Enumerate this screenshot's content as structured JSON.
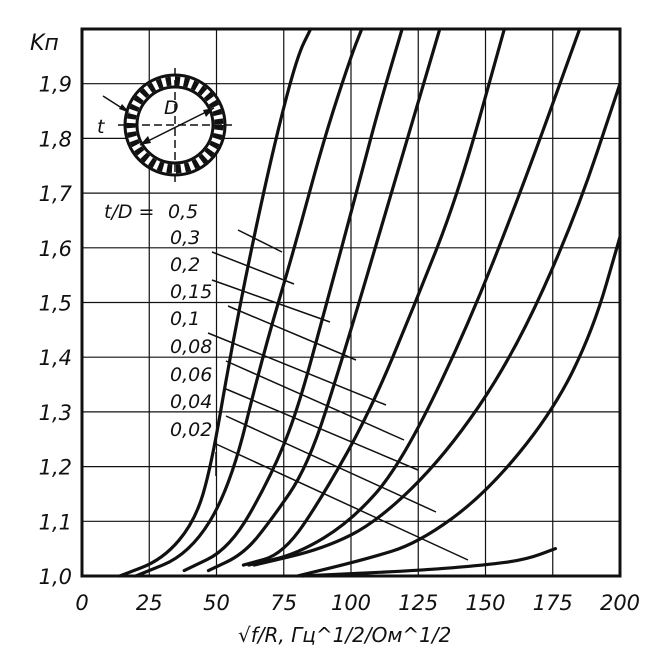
{
  "chart_data": {
    "type": "line",
    "title": "",
    "ylabel": "Kп",
    "xlabel": "√f/R, Гц^1/2/Ом^1/2",
    "xlim": [
      0,
      200
    ],
    "ylim": [
      1.0,
      2.0
    ],
    "grid": true,
    "x_ticks": [
      0,
      25,
      50,
      75,
      100,
      125,
      150,
      175,
      200
    ],
    "y_ticks": [
      1.0,
      1.1,
      1.2,
      1.3,
      1.4,
      1.5,
      1.6,
      1.7,
      1.8,
      1.9
    ],
    "x_tick_labels": [
      "0",
      "25",
      "50",
      "75",
      "100",
      "125",
      "150",
      "175",
      "200"
    ],
    "y_tick_labels": [
      "1,0",
      "1,1",
      "1,2",
      "1,3",
      "1,4",
      "1,5",
      "1,6",
      "1,7",
      "1,8",
      "1,9"
    ],
    "legend_header": "t/D =",
    "series": [
      {
        "name": "0,5",
        "points": [
          [
            14,
            1.0
          ],
          [
            30,
            1.03
          ],
          [
            42,
            1.1
          ],
          [
            48,
            1.2
          ],
          [
            55,
            1.4
          ],
          [
            63,
            1.6
          ],
          [
            72,
            1.8
          ],
          [
            80,
            1.95
          ],
          [
            85,
            2.0
          ]
        ]
      },
      {
        "name": "0,3",
        "points": [
          [
            20,
            1.0
          ],
          [
            40,
            1.04
          ],
          [
            55,
            1.16
          ],
          [
            67,
            1.4
          ],
          [
            79,
            1.6
          ],
          [
            90,
            1.8
          ],
          [
            100,
            1.95
          ],
          [
            104,
            2.0
          ]
        ]
      },
      {
        "name": "0,2",
        "points": [
          [
            38,
            1.01
          ],
          [
            55,
            1.05
          ],
          [
            70,
            1.18
          ],
          [
            80,
            1.3
          ],
          [
            91,
            1.5
          ],
          [
            102,
            1.7
          ],
          [
            110,
            1.85
          ],
          [
            119,
            2.0
          ]
        ]
      },
      {
        "name": "0,15",
        "points": [
          [
            47,
            1.01
          ],
          [
            60,
            1.04
          ],
          [
            70,
            1.1
          ],
          [
            84,
            1.2
          ],
          [
            97,
            1.4
          ],
          [
            115,
            1.7
          ],
          [
            133,
            2.0
          ]
        ]
      },
      {
        "name": "0,1",
        "points": [
          [
            60,
            1.02
          ],
          [
            75,
            1.04
          ],
          [
            90,
            1.15
          ],
          [
            107,
            1.3
          ],
          [
            124,
            1.5
          ],
          [
            140,
            1.7
          ],
          [
            157,
            2.0
          ]
        ]
      },
      {
        "name": "0,08",
        "points": [
          [
            62,
            1.02
          ],
          [
            80,
            1.04
          ],
          [
            100,
            1.1
          ],
          [
            118,
            1.2
          ],
          [
            142,
            1.44
          ],
          [
            163,
            1.7
          ],
          [
            185,
            2.0
          ]
        ]
      },
      {
        "name": "0,06",
        "points": [
          [
            64,
            1.02
          ],
          [
            90,
            1.05
          ],
          [
            110,
            1.1
          ],
          [
            135,
            1.22
          ],
          [
            160,
            1.4
          ],
          [
            183,
            1.65
          ],
          [
            200,
            1.9
          ]
        ]
      },
      {
        "name": "0,04",
        "points": [
          [
            80,
            1.0
          ],
          [
            105,
            1.03
          ],
          [
            125,
            1.06
          ],
          [
            150,
            1.15
          ],
          [
            175,
            1.3
          ],
          [
            190,
            1.45
          ],
          [
            200,
            1.62
          ]
        ]
      },
      {
        "name": "0,02",
        "points": [
          [
            82,
            1.0
          ],
          [
            125,
            1.01
          ],
          [
            150,
            1.02
          ],
          [
            165,
            1.03
          ],
          [
            176,
            1.05
          ]
        ]
      }
    ],
    "annotations": [
      {
        "text": "t",
        "label": "wall thickness"
      },
      {
        "text": "D",
        "label": "diameter"
      }
    ]
  }
}
